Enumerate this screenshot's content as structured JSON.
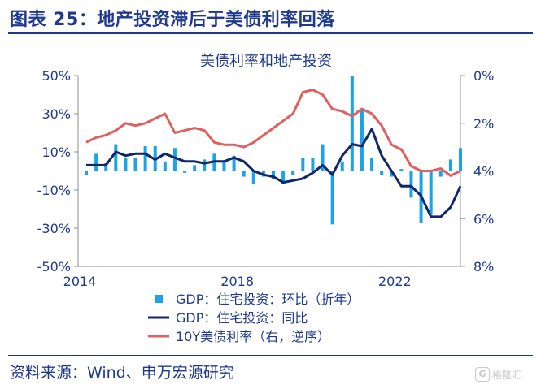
{
  "header": {
    "figure_title": "图表 25：地产投资滞后于美债利率回落"
  },
  "footer": {
    "source": "资料来源：Wind、申万宏源研究"
  },
  "watermark": {
    "text": "格隆汇",
    "icon": "gelonghui-logo-icon"
  },
  "colors": {
    "bar": "#1aa3e6",
    "yoy_line": "#10266b",
    "yield_line": "#e06060",
    "axis": "#8c8c8c",
    "title": "#1f3a8c"
  },
  "chart_data": {
    "type": "bar+line",
    "title": "美债利率和地产投资",
    "x_tick_labels": [
      "2014",
      "2018",
      "2022"
    ],
    "x_tick_quarters": [
      0,
      16,
      32
    ],
    "y_left": {
      "ticks": [
        50,
        30,
        10,
        -10,
        -30,
        -50
      ],
      "tick_labels": [
        "50%",
        "30%",
        "10%",
        "-10%",
        "-30%",
        "-50%"
      ],
      "lim": [
        -50,
        50
      ],
      "unit": "%"
    },
    "y_right": {
      "ticks": [
        0,
        2,
        4,
        6,
        8
      ],
      "tick_labels": [
        "0%",
        "2%",
        "4%",
        "6%",
        "8%"
      ],
      "lim": [
        0,
        8
      ],
      "inverted": true,
      "unit": "%"
    },
    "x_range_quarters": [
      0,
      38
    ],
    "series": [
      {
        "name": "GDP：住宅投资：环比（折年）",
        "type": "bar",
        "axis": "left",
        "x": [
          0,
          1,
          2,
          3,
          4,
          5,
          6,
          7,
          8,
          9,
          10,
          11,
          12,
          13,
          14,
          15,
          16,
          17,
          18,
          19,
          20,
          21,
          22,
          23,
          24,
          25,
          26,
          27,
          28,
          29,
          30,
          31,
          32,
          33,
          34,
          35,
          36,
          37,
          38
        ],
        "values": [
          -2,
          9,
          4,
          14,
          7,
          7,
          13,
          13,
          5,
          12,
          -1,
          3,
          6,
          9,
          5,
          8,
          -3,
          -7,
          -3,
          -4,
          -7,
          -2,
          7,
          7,
          14,
          -28,
          5,
          50,
          32,
          7,
          -2,
          -3,
          1,
          -14,
          -27,
          -23,
          -3,
          6,
          12
        ]
      },
      {
        "name": "GDP：住宅投资：同比",
        "type": "line",
        "axis": "left",
        "x": [
          0,
          1,
          2,
          3,
          4,
          5,
          6,
          7,
          8,
          9,
          10,
          11,
          12,
          13,
          14,
          15,
          16,
          17,
          18,
          19,
          20,
          21,
          22,
          23,
          24,
          25,
          26,
          27,
          28,
          29,
          30,
          31,
          32,
          33,
          34,
          35,
          36,
          37,
          38
        ],
        "values": [
          3,
          3,
          3,
          10,
          8,
          9,
          9,
          6,
          9,
          7,
          5,
          5,
          4,
          5,
          5,
          7,
          5,
          0,
          -2,
          -3,
          -6,
          -5,
          -4,
          -1,
          3,
          -2,
          8,
          14,
          13,
          22,
          8,
          0,
          -8,
          -8,
          -13,
          -24,
          -24,
          -19,
          -8
        ]
      },
      {
        "name": "10Y美债利率（右，逆序）",
        "type": "line",
        "axis": "right",
        "x": [
          0,
          1,
          2,
          3,
          4,
          5,
          6,
          7,
          8,
          9,
          10,
          11,
          12,
          13,
          14,
          15,
          16,
          17,
          18,
          19,
          20,
          21,
          22,
          23,
          24,
          25,
          26,
          27,
          28,
          29,
          30,
          31,
          32,
          33,
          34,
          35,
          36,
          37,
          38
        ],
        "values": [
          2.8,
          2.6,
          2.5,
          2.3,
          2.0,
          2.1,
          2.0,
          1.8,
          1.6,
          2.4,
          2.3,
          2.2,
          2.3,
          2.8,
          2.9,
          2.9,
          3.0,
          2.8,
          2.5,
          2.2,
          1.9,
          1.6,
          0.7,
          0.6,
          0.8,
          1.4,
          1.5,
          1.7,
          1.4,
          1.6,
          2.1,
          2.9,
          3.1,
          3.8,
          4.0,
          4.0,
          3.9,
          4.2,
          4.0
        ]
      }
    ],
    "legend": {
      "placement": "bottom-center"
    }
  }
}
